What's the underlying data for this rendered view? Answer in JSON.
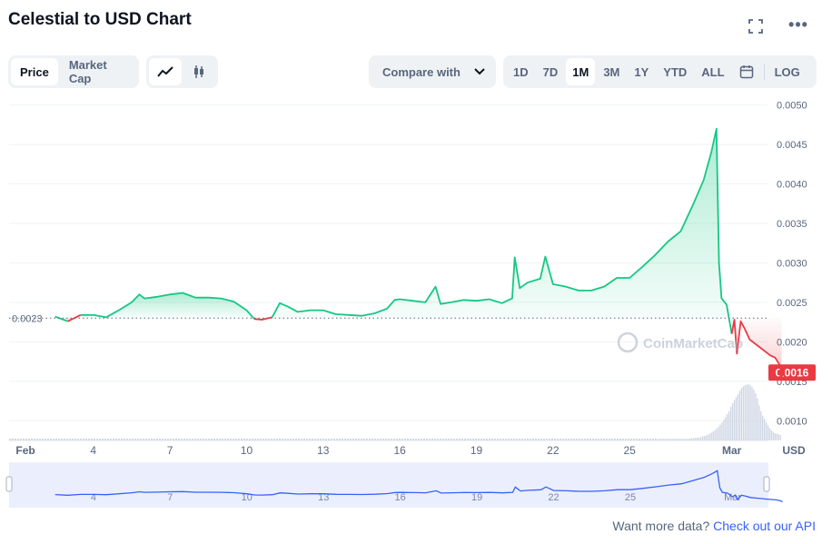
{
  "title": "Celestial to USD Chart",
  "top_icons": {
    "expand": "expand-icon",
    "more": "more-dots-icon"
  },
  "toggle": {
    "price": "Price",
    "market_cap": "Market Cap",
    "active": "price"
  },
  "chart_types": {
    "line": "line-chart-icon",
    "candle": "candlestick-icon",
    "active": "line"
  },
  "compare": {
    "label": "Compare with"
  },
  "ranges": {
    "items": [
      "1D",
      "7D",
      "1M",
      "3M",
      "1Y",
      "YTD",
      "ALL"
    ],
    "active": "1M",
    "calendar": "calendar-icon",
    "log": "LOG"
  },
  "colors": {
    "up": "#16c784",
    "down": "#ea3943",
    "grid": "#eff2f5",
    "axis_text": "#58667e",
    "volume": "#cfd6e4",
    "nav": "#3861fb"
  },
  "watermark": "CoinMarketCap",
  "footer": {
    "prefix": "Want more data?",
    "link": "Check out our API"
  },
  "chart_data": {
    "type": "line",
    "y_unit": "USD",
    "ylim": [
      0.00075,
      0.0051
    ],
    "y_ticks": [
      "0.0010",
      "0.0015",
      "0.0020",
      "0.0025",
      "0.0030",
      "0.0035",
      "0.0040",
      "0.0045",
      "0.0050"
    ],
    "reference_label": "0.0023",
    "reference_value": 0.0023,
    "current_label": "0.0016",
    "current_value": 0.00161,
    "x_range": [
      0.7,
      30.4
    ],
    "x_ticks": [
      {
        "x": 1,
        "label": "Feb"
      },
      {
        "x": 4,
        "label": "4"
      },
      {
        "x": 7,
        "label": "7"
      },
      {
        "x": 10,
        "label": "10"
      },
      {
        "x": 13,
        "label": "13"
      },
      {
        "x": 16,
        "label": "16"
      },
      {
        "x": 19,
        "label": "19"
      },
      {
        "x": 22,
        "label": "22"
      },
      {
        "x": 25,
        "label": "25"
      },
      {
        "x": 29,
        "label": "Mar"
      }
    ],
    "grid": true,
    "series": [
      {
        "points": [
          [
            2.5,
            0.00232
          ],
          [
            3.0,
            0.00226
          ],
          [
            3.5,
            0.00234
          ],
          [
            4.0,
            0.00234
          ],
          [
            4.5,
            0.00231
          ],
          [
            5.0,
            0.0024
          ],
          [
            5.5,
            0.0025
          ],
          [
            5.8,
            0.0026
          ],
          [
            6.0,
            0.00255
          ],
          [
            6.5,
            0.00257
          ],
          [
            7.0,
            0.0026
          ],
          [
            7.5,
            0.00262
          ],
          [
            8.0,
            0.00256
          ],
          [
            8.5,
            0.00256
          ],
          [
            9.0,
            0.00255
          ],
          [
            9.5,
            0.00251
          ],
          [
            10.0,
            0.0024
          ],
          [
            10.3,
            0.00229
          ],
          [
            10.6,
            0.00228
          ],
          [
            11.0,
            0.00231
          ],
          [
            11.3,
            0.00249
          ],
          [
            11.6,
            0.00245
          ],
          [
            12.0,
            0.00238
          ],
          [
            12.5,
            0.0024
          ],
          [
            13.0,
            0.0024
          ],
          [
            13.5,
            0.00235
          ],
          [
            14.0,
            0.00234
          ],
          [
            14.5,
            0.00233
          ],
          [
            15.0,
            0.00236
          ],
          [
            15.5,
            0.00242
          ],
          [
            15.8,
            0.00253
          ],
          [
            16.0,
            0.00254
          ],
          [
            16.5,
            0.00252
          ],
          [
            17.0,
            0.0025
          ],
          [
            17.4,
            0.0027
          ],
          [
            17.6,
            0.00248
          ],
          [
            18.0,
            0.0025
          ],
          [
            18.5,
            0.00253
          ],
          [
            19.0,
            0.00252
          ],
          [
            19.5,
            0.00254
          ],
          [
            20.0,
            0.00249
          ],
          [
            20.4,
            0.00255
          ],
          [
            20.5,
            0.00307
          ],
          [
            20.7,
            0.00268
          ],
          [
            21.0,
            0.00275
          ],
          [
            21.5,
            0.0028
          ],
          [
            21.7,
            0.00308
          ],
          [
            22.0,
            0.00273
          ],
          [
            22.5,
            0.0027
          ],
          [
            23.0,
            0.00265
          ],
          [
            23.5,
            0.00265
          ],
          [
            24.0,
            0.0027
          ],
          [
            24.5,
            0.00281
          ],
          [
            25.0,
            0.00281
          ],
          [
            25.5,
            0.00295
          ],
          [
            26.0,
            0.0031
          ],
          [
            26.5,
            0.00327
          ],
          [
            27.0,
            0.0034
          ],
          [
            27.5,
            0.00375
          ],
          [
            27.9,
            0.00405
          ],
          [
            28.2,
            0.0044
          ],
          [
            28.4,
            0.0047
          ],
          [
            28.5,
            0.003
          ],
          [
            28.6,
            0.00255
          ],
          [
            28.8,
            0.00247
          ],
          [
            29.0,
            0.0021
          ],
          [
            29.1,
            0.00228
          ],
          [
            29.2,
            0.00185
          ],
          [
            29.35,
            0.00226
          ],
          [
            29.5,
            0.00217
          ],
          [
            29.7,
            0.00203
          ],
          [
            29.9,
            0.00198
          ],
          [
            30.1,
            0.00193
          ],
          [
            30.3,
            0.00188
          ],
          [
            30.5,
            0.00183
          ],
          [
            30.7,
            0.0018
          ],
          [
            30.85,
            0.00172
          ],
          [
            30.95,
            0.00161
          ]
        ]
      }
    ],
    "volume": [
      0.03,
      0.03,
      0.03,
      0.03,
      0.03,
      0.03,
      0.03,
      0.03,
      0.03,
      0.03,
      0.03,
      0.03,
      0.03,
      0.03,
      0.03,
      0.03,
      0.03,
      0.03,
      0.04,
      0.04,
      0.04,
      0.05,
      0.05,
      0.05,
      0.06,
      0.07,
      0.08,
      0.09,
      0.1,
      0.12,
      0.14,
      0.16,
      0.18,
      0.21,
      0.24,
      0.28,
      0.32,
      0.37,
      0.42,
      0.47,
      0.52,
      0.6,
      0.66,
      0.72,
      0.77,
      0.82,
      0.88,
      0.93,
      0.96,
      0.98,
      0.99,
      1.0,
      0.98,
      0.95,
      0.9,
      0.84,
      0.75,
      0.62,
      0.52,
      0.44,
      0.38,
      0.32,
      0.27,
      0.22,
      0.18,
      0.15,
      0.13,
      0.12,
      0.11,
      0.1
    ]
  }
}
